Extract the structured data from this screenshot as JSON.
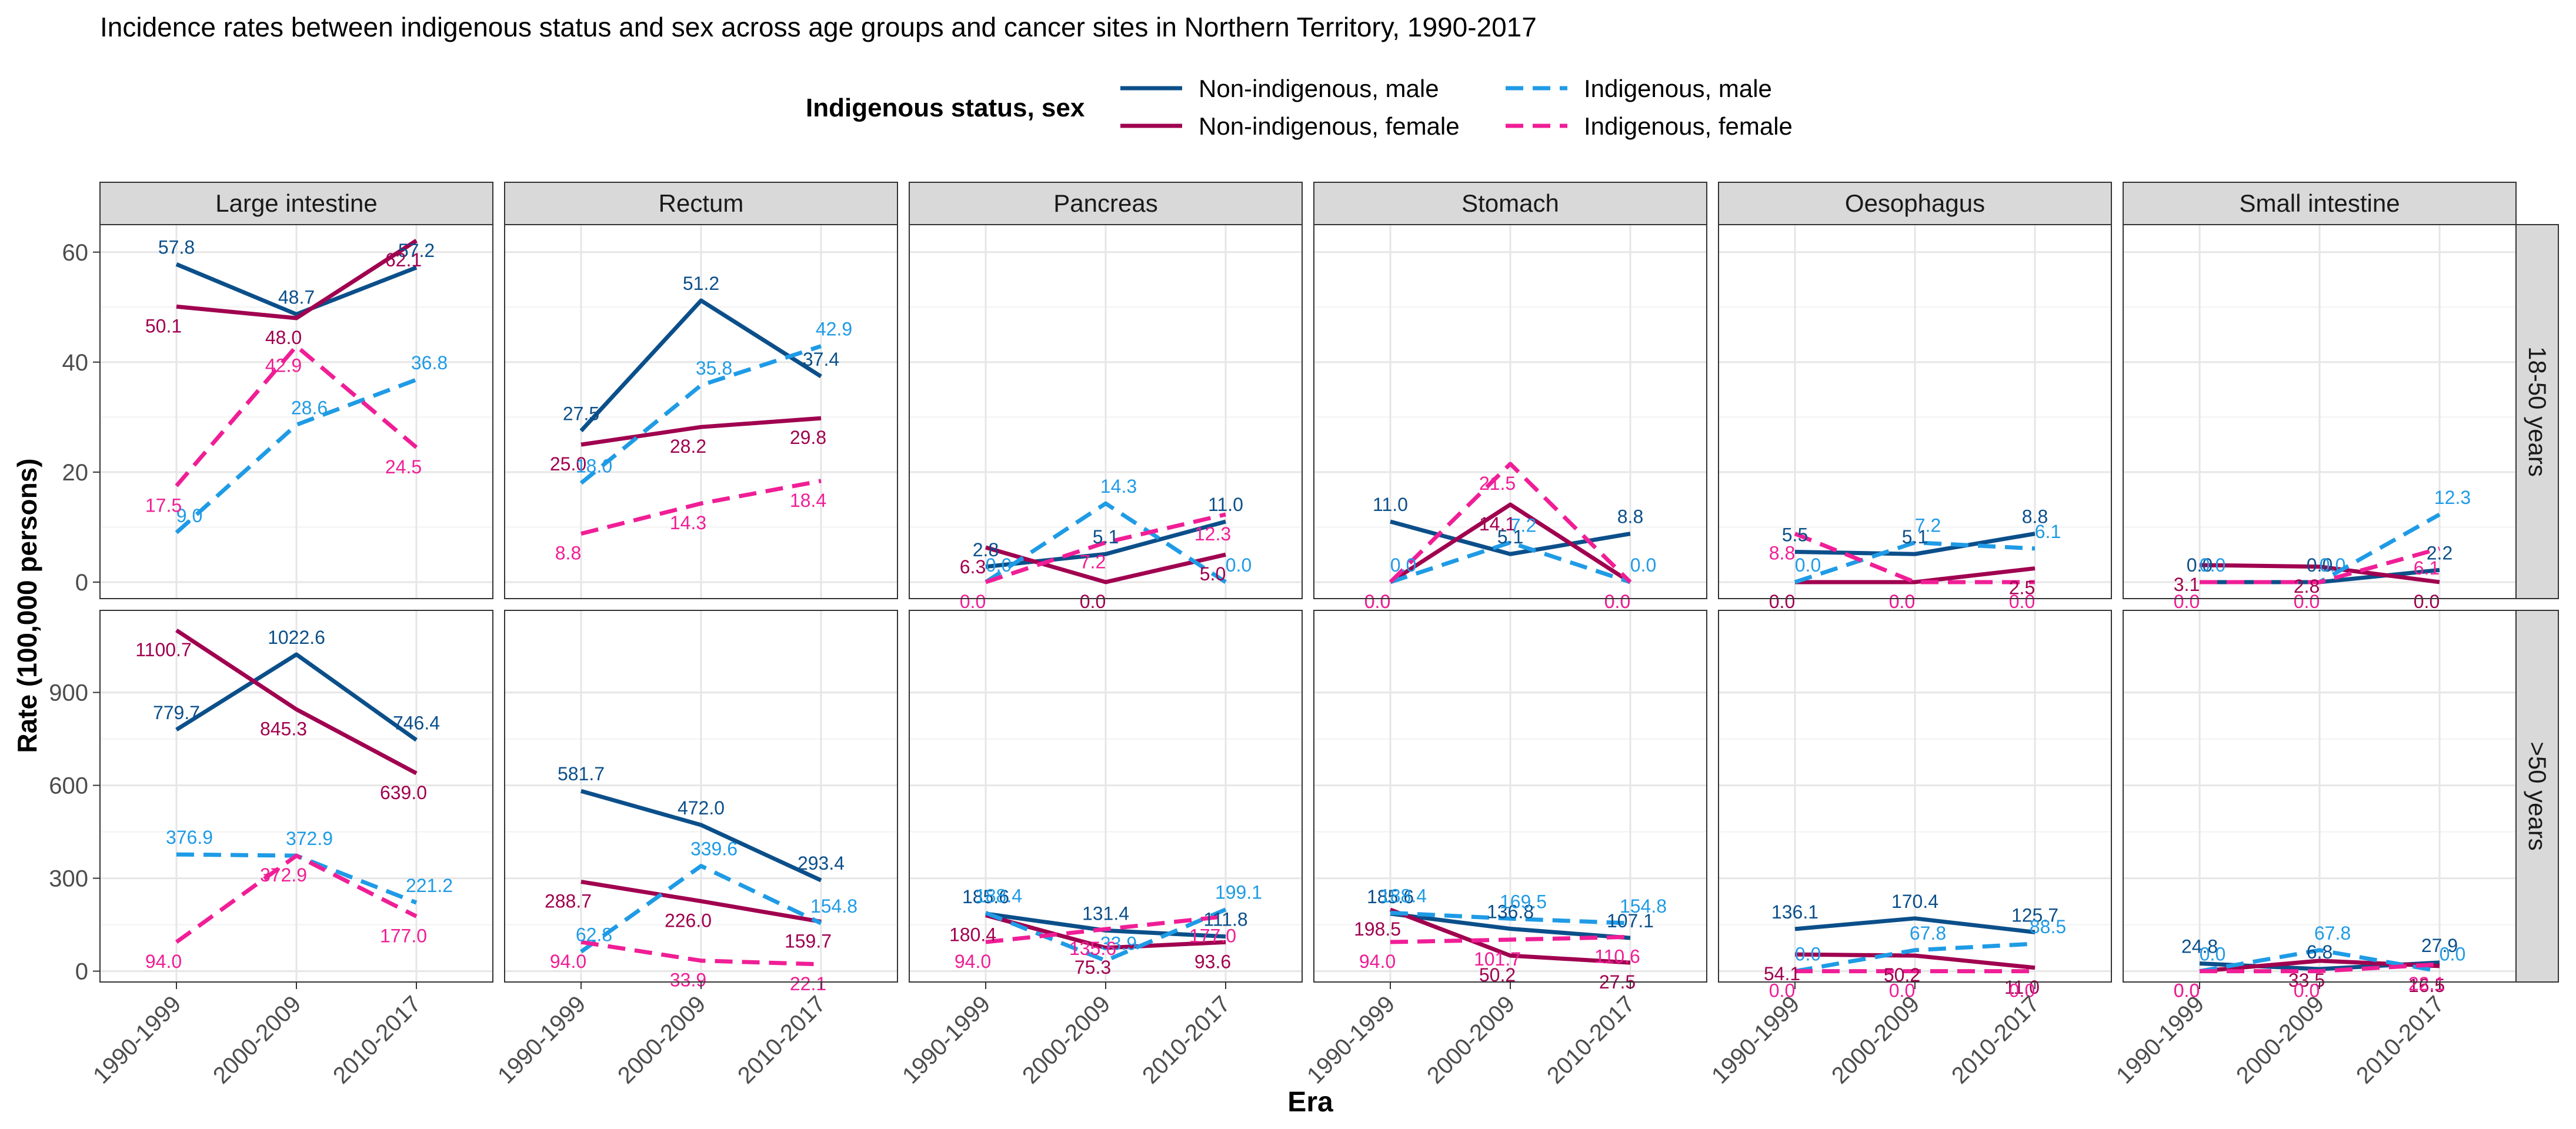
{
  "chart_data": {
    "type": "line",
    "title": "Incidence rates between indigenous status and sex across age groups and cancer sites in Northern Territory, 1990-2017",
    "xlabel": "Era",
    "ylabel": "Rate (100,000 persons)",
    "legend": {
      "title": "Indigenous status, sex",
      "placement": "top"
    },
    "categories": [
      "1990-1999",
      "2000-2009",
      "2010-2017"
    ],
    "series_styles": [
      {
        "name": "Non-indigenous, male",
        "color": "#0b4f8a",
        "dash": "solid"
      },
      {
        "name": "Non-indigenous, female",
        "color": "#a0004f",
        "dash": "solid"
      },
      {
        "name": "Indigenous, male",
        "color": "#1f9be6",
        "dash": "dashed"
      },
      {
        "name": "Indigenous, female",
        "color": "#f01e96",
        "dash": "dashed"
      }
    ],
    "columns": [
      "Large intestine",
      "Rectum",
      "Pancreas",
      "Stomach",
      "Oesophagus",
      "Small intestine"
    ],
    "rows": [
      {
        "label": "18-50 years",
        "ylim": [
          -3,
          65
        ],
        "ticks": [
          0,
          20,
          40,
          60
        ]
      },
      {
        "label": ">50 years",
        "ylim": [
          -35,
          1165
        ],
        "ticks": [
          0,
          300,
          600,
          900
        ]
      }
    ],
    "panels": [
      [
        {
          "Non-indigenous, male": [
            57.8,
            48.7,
            57.2
          ],
          "Non-indigenous, female": [
            50.1,
            48.0,
            62.1
          ],
          "Indigenous, male": [
            9.0,
            28.6,
            36.8
          ],
          "Indigenous, female": [
            17.5,
            42.9,
            24.5
          ]
        },
        {
          "Non-indigenous, male": [
            27.5,
            51.2,
            37.4
          ],
          "Non-indigenous, female": [
            25.0,
            28.2,
            29.8
          ],
          "Indigenous, male": [
            18.0,
            35.8,
            42.9
          ],
          "Indigenous, female": [
            8.8,
            14.3,
            18.4
          ]
        },
        {
          "Non-indigenous, male": [
            2.8,
            5.1,
            11.0
          ],
          "Non-indigenous, female": [
            6.3,
            0.0,
            5.0
          ],
          "Indigenous, male": [
            0.0,
            14.3,
            0.0
          ],
          "Indigenous, female": [
            0.0,
            7.2,
            12.3
          ]
        },
        {
          "Non-indigenous, male": [
            11.0,
            5.1,
            8.8
          ],
          "Non-indigenous, female": [
            0.0,
            14.1,
            0.0
          ],
          "Indigenous, male": [
            0.0,
            7.2,
            0.0
          ],
          "Indigenous, female": [
            0.0,
            21.5,
            0.0
          ]
        },
        {
          "Non-indigenous, male": [
            5.5,
            5.1,
            8.8
          ],
          "Non-indigenous, female": [
            0.0,
            0.0,
            2.5
          ],
          "Indigenous, male": [
            0.0,
            7.2,
            6.1
          ],
          "Indigenous, female": [
            8.8,
            0.0,
            0.0
          ]
        },
        {
          "Non-indigenous, male": [
            0.0,
            0.0,
            2.2
          ],
          "Non-indigenous, female": [
            3.1,
            2.8,
            0.0
          ],
          "Indigenous, male": [
            0.0,
            0.0,
            12.3
          ],
          "Indigenous, female": [
            0.0,
            0.0,
            6.1
          ]
        }
      ],
      [
        {
          "Non-indigenous, male": [
            779.7,
            1022.6,
            746.4
          ],
          "Non-indigenous, female": [
            1100.7,
            845.3,
            639.0
          ],
          "Indigenous, male": [
            376.9,
            372.9,
            221.2
          ],
          "Indigenous, female": [
            94.0,
            372.9,
            177.0
          ]
        },
        {
          "Non-indigenous, male": [
            581.7,
            472.0,
            293.4
          ],
          "Non-indigenous, female": [
            288.7,
            226.0,
            159.7
          ],
          "Indigenous, male": [
            62.8,
            339.6,
            154.8
          ],
          "Indigenous, female": [
            94.0,
            33.9,
            22.1
          ]
        },
        {
          "Non-indigenous, male": [
            185.6,
            131.4,
            111.8
          ],
          "Non-indigenous, female": [
            180.4,
            75.3,
            93.6
          ],
          "Indigenous, male": [
            188.4,
            33.9,
            199.1
          ],
          "Indigenous, female": [
            94.0,
            135.6,
            177.0
          ]
        },
        {
          "Non-indigenous, male": [
            185.6,
            136.8,
            107.1
          ],
          "Non-indigenous, female": [
            198.5,
            50.2,
            27.5
          ],
          "Indigenous, male": [
            188.4,
            169.5,
            154.8
          ],
          "Indigenous, female": [
            94.0,
            101.7,
            110.6
          ]
        },
        {
          "Non-indigenous, male": [
            136.1,
            170.4,
            125.7
          ],
          "Non-indigenous, female": [
            54.1,
            50.2,
            11.0
          ],
          "Indigenous, male": [
            0.0,
            67.8,
            88.5
          ],
          "Indigenous, female": [
            0.0,
            0.0,
            0.0
          ]
        },
        {
          "Non-indigenous, male": [
            24.8,
            6.8,
            27.9
          ],
          "Non-indigenous, female": [
            0.0,
            33.5,
            16.5
          ],
          "Indigenous, male": [
            0.0,
            67.8,
            0.0
          ],
          "Indigenous, female": [
            0.0,
            0.0,
            22.1
          ]
        }
      ]
    ]
  }
}
